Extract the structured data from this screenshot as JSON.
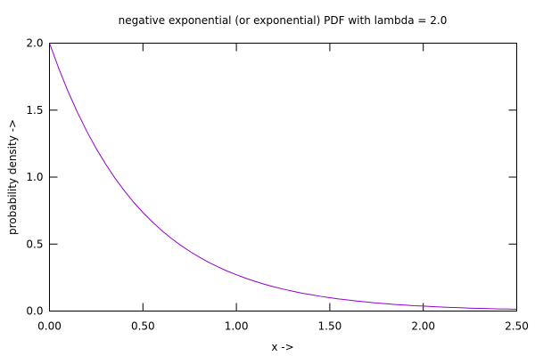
{
  "chart_data": {
    "type": "line",
    "title": "negative exponential (or exponential) PDF with lambda = 2.0",
    "xlabel": "x ->",
    "ylabel": "probability density ->",
    "xlim": [
      0,
      2.5
    ],
    "ylim": [
      0,
      2.0
    ],
    "x_ticks": [
      0,
      0.5,
      1.0,
      1.5,
      2.0,
      2.5
    ],
    "x_tick_labels": [
      "0.00",
      "0.50",
      "1.00",
      "1.50",
      "2.00",
      "2.50"
    ],
    "y_ticks": [
      0,
      0.5,
      1.0,
      1.5,
      2.0
    ],
    "y_tick_labels": [
      "0.0",
      "0.5",
      "1.0",
      "1.5",
      "2.0"
    ],
    "grid": false,
    "legend": "none",
    "series": [
      {
        "color": "#9400d3",
        "x": [
          0,
          0.05,
          0.1,
          0.15,
          0.2,
          0.25,
          0.3,
          0.35,
          0.4,
          0.45,
          0.5,
          0.55,
          0.6,
          0.65,
          0.7,
          0.75,
          0.8,
          0.85,
          0.9,
          0.95,
          1.0,
          1.05,
          1.1,
          1.15,
          1.2,
          1.25,
          1.3,
          1.35,
          1.4,
          1.45,
          1.5,
          1.55,
          1.6,
          1.65,
          1.7,
          1.75,
          1.8,
          1.85,
          1.9,
          1.95,
          2.0,
          2.05,
          2.1,
          2.15,
          2.2,
          2.25,
          2.3,
          2.35,
          2.4,
          2.45,
          2.5
        ],
        "y": [
          2.0,
          1.81,
          1.637,
          1.482,
          1.341,
          1.213,
          1.098,
          0.993,
          0.899,
          0.813,
          0.736,
          0.666,
          0.602,
          0.545,
          0.493,
          0.446,
          0.404,
          0.365,
          0.331,
          0.299,
          0.271,
          0.245,
          0.222,
          0.2,
          0.181,
          0.164,
          0.149,
          0.134,
          0.122,
          0.11,
          0.1,
          0.09,
          0.082,
          0.074,
          0.067,
          0.06,
          0.055,
          0.049,
          0.045,
          0.04,
          0.037,
          0.033,
          0.03,
          0.027,
          0.025,
          0.022,
          0.02,
          0.018,
          0.016,
          0.015,
          0.013
        ]
      }
    ]
  }
}
